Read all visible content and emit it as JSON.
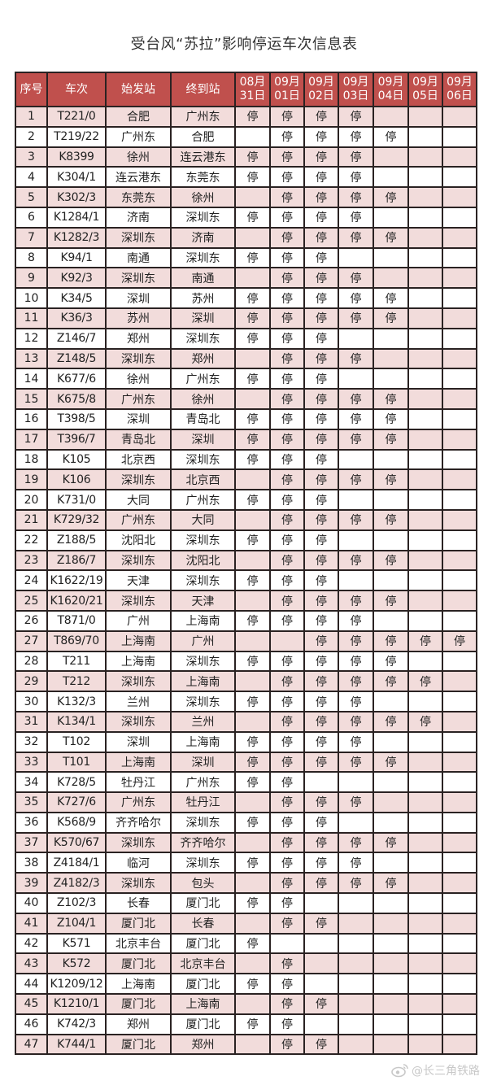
{
  "title": "受台风“苏拉”影响停运车次信息表",
  "columns": {
    "index": "序号",
    "train": "车次",
    "origin": "始发站",
    "destination": "终到站",
    "dates": [
      {
        "month": "08月",
        "day": "31日"
      },
      {
        "month": "09月",
        "day": "01日"
      },
      {
        "month": "09月",
        "day": "02日"
      },
      {
        "month": "09月",
        "day": "03日"
      },
      {
        "month": "09月",
        "day": "04日"
      },
      {
        "month": "09月",
        "day": "05日"
      },
      {
        "month": "09月",
        "day": "06日"
      }
    ]
  },
  "rows": [
    {
      "no": "1",
      "train": "T221/0",
      "from": "合肥",
      "to": "广州东",
      "days": [
        "停",
        "停",
        "停",
        "停",
        "",
        "",
        ""
      ]
    },
    {
      "no": "2",
      "train": "T219/22",
      "from": "广州东",
      "to": "合肥",
      "days": [
        "",
        "停",
        "停",
        "停",
        "停",
        "",
        ""
      ]
    },
    {
      "no": "3",
      "train": "K8399",
      "from": "徐州",
      "to": "连云港东",
      "days": [
        "停",
        "停",
        "停",
        "停",
        "",
        "",
        ""
      ]
    },
    {
      "no": "4",
      "train": "K304/1",
      "from": "连云港东",
      "to": "东莞东",
      "days": [
        "停",
        "停",
        "停",
        "停",
        "",
        "",
        ""
      ]
    },
    {
      "no": "5",
      "train": "K302/3",
      "from": "东莞东",
      "to": "徐州",
      "days": [
        "",
        "停",
        "停",
        "停",
        "停",
        "",
        ""
      ]
    },
    {
      "no": "6",
      "train": "K1284/1",
      "from": "济南",
      "to": "深圳东",
      "days": [
        "停",
        "停",
        "停",
        "停",
        "",
        "",
        ""
      ]
    },
    {
      "no": "7",
      "train": "K1282/3",
      "from": "深圳东",
      "to": "济南",
      "days": [
        "",
        "停",
        "停",
        "停",
        "停",
        "",
        ""
      ]
    },
    {
      "no": "8",
      "train": "K94/1",
      "from": "南通",
      "to": "深圳东",
      "days": [
        "停",
        "停",
        "停",
        "",
        "",
        "",
        ""
      ]
    },
    {
      "no": "9",
      "train": "K92/3",
      "from": "深圳东",
      "to": "南通",
      "days": [
        "",
        "停",
        "停",
        "停",
        "",
        "",
        ""
      ]
    },
    {
      "no": "10",
      "train": "K34/5",
      "from": "深圳",
      "to": "苏州",
      "days": [
        "停",
        "停",
        "停",
        "停",
        "停",
        "",
        ""
      ]
    },
    {
      "no": "11",
      "train": "K36/3",
      "from": "苏州",
      "to": "深圳",
      "days": [
        "停",
        "停",
        "停",
        "停",
        "停",
        "",
        ""
      ]
    },
    {
      "no": "12",
      "train": "Z146/7",
      "from": "郑州",
      "to": "深圳东",
      "days": [
        "停",
        "停",
        "停",
        "",
        "",
        "",
        ""
      ]
    },
    {
      "no": "13",
      "train": "Z148/5",
      "from": "深圳东",
      "to": "郑州",
      "days": [
        "",
        "停",
        "停",
        "停",
        "",
        "",
        ""
      ]
    },
    {
      "no": "14",
      "train": "K677/6",
      "from": "徐州",
      "to": "广州东",
      "days": [
        "停",
        "停",
        "停",
        "",
        "",
        "",
        ""
      ]
    },
    {
      "no": "15",
      "train": "K675/8",
      "from": "广州东",
      "to": "徐州",
      "days": [
        "",
        "停",
        "停",
        "停",
        "停",
        "",
        ""
      ]
    },
    {
      "no": "16",
      "train": "T398/5",
      "from": "深圳",
      "to": "青岛北",
      "days": [
        "停",
        "停",
        "停",
        "停",
        "停",
        "",
        ""
      ]
    },
    {
      "no": "17",
      "train": "T396/7",
      "from": "青岛北",
      "to": "深圳",
      "days": [
        "停",
        "停",
        "停",
        "停",
        "停",
        "",
        ""
      ]
    },
    {
      "no": "18",
      "train": "K105",
      "from": "北京西",
      "to": "深圳东",
      "days": [
        "停",
        "停",
        "停",
        "",
        "",
        "",
        ""
      ]
    },
    {
      "no": "19",
      "train": "K106",
      "from": "深圳东",
      "to": "北京西",
      "days": [
        "",
        "停",
        "停",
        "停",
        "停",
        "",
        ""
      ]
    },
    {
      "no": "20",
      "train": "K731/0",
      "from": "大同",
      "to": "广州东",
      "days": [
        "停",
        "停",
        "停",
        "",
        "",
        "",
        ""
      ]
    },
    {
      "no": "21",
      "train": "K729/32",
      "from": "广州东",
      "to": "大同",
      "days": [
        "",
        "停",
        "停",
        "停",
        "停",
        "",
        ""
      ]
    },
    {
      "no": "22",
      "train": "Z188/5",
      "from": "沈阳北",
      "to": "深圳东",
      "days": [
        "停",
        "停",
        "停",
        "",
        "",
        "",
        ""
      ]
    },
    {
      "no": "23",
      "train": "Z186/7",
      "from": "深圳东",
      "to": "沈阳北",
      "days": [
        "",
        "停",
        "停",
        "停",
        "停",
        "",
        ""
      ]
    },
    {
      "no": "24",
      "train": "K1622/19",
      "from": "天津",
      "to": "深圳东",
      "days": [
        "停",
        "停",
        "停",
        "",
        "",
        "",
        ""
      ]
    },
    {
      "no": "25",
      "train": "K1620/21",
      "from": "深圳东",
      "to": "天津",
      "days": [
        "",
        "停",
        "停",
        "停",
        "停",
        "",
        ""
      ]
    },
    {
      "no": "26",
      "train": "T871/0",
      "from": "广州",
      "to": "上海南",
      "days": [
        "停",
        "停",
        "停",
        "停",
        "",
        "",
        ""
      ]
    },
    {
      "no": "27",
      "train": "T869/70",
      "from": "上海南",
      "to": "广州",
      "days": [
        "",
        "",
        "停",
        "停",
        "停",
        "停",
        "停"
      ]
    },
    {
      "no": "28",
      "train": "T211",
      "from": "上海南",
      "to": "深圳东",
      "days": [
        "停",
        "停",
        "停",
        "停",
        "停",
        "",
        ""
      ]
    },
    {
      "no": "29",
      "train": "T212",
      "from": "深圳东",
      "to": "上海南",
      "days": [
        "",
        "停",
        "停",
        "停",
        "停",
        "停",
        ""
      ]
    },
    {
      "no": "30",
      "train": "K132/3",
      "from": "兰州",
      "to": "深圳东",
      "days": [
        "停",
        "停",
        "停",
        "停",
        "",
        "",
        ""
      ]
    },
    {
      "no": "31",
      "train": "K134/1",
      "from": "深圳东",
      "to": "兰州",
      "days": [
        "",
        "停",
        "停",
        "停",
        "停",
        "停",
        ""
      ]
    },
    {
      "no": "32",
      "train": "T102",
      "from": "深圳",
      "to": "上海南",
      "days": [
        "停",
        "停",
        "停",
        "停",
        "",
        "",
        ""
      ]
    },
    {
      "no": "33",
      "train": "T101",
      "from": "上海南",
      "to": "深圳",
      "days": [
        "停",
        "停",
        "停",
        "停",
        "停",
        "",
        ""
      ]
    },
    {
      "no": "34",
      "train": "K728/5",
      "from": "牡丹江",
      "to": "广州东",
      "days": [
        "停",
        "停",
        "",
        "",
        "",
        "",
        ""
      ]
    },
    {
      "no": "35",
      "train": "K727/6",
      "from": "广州东",
      "to": "牡丹江",
      "days": [
        "",
        "停",
        "停",
        "停",
        "",
        "",
        ""
      ]
    },
    {
      "no": "36",
      "train": "K568/9",
      "from": "齐齐哈尔",
      "to": "深圳东",
      "days": [
        "停",
        "停",
        "停",
        "",
        "",
        "",
        ""
      ]
    },
    {
      "no": "37",
      "train": "K570/67",
      "from": "深圳东",
      "to": "齐齐哈尔",
      "days": [
        "",
        "停",
        "停",
        "停",
        "停",
        "",
        ""
      ]
    },
    {
      "no": "38",
      "train": "Z4184/1",
      "from": "临河",
      "to": "深圳东",
      "days": [
        "停",
        "停",
        "停",
        "停",
        "",
        "",
        ""
      ]
    },
    {
      "no": "39",
      "train": "Z4182/3",
      "from": "深圳东",
      "to": "包头",
      "days": [
        "",
        "停",
        "停",
        "停",
        "停",
        "",
        ""
      ]
    },
    {
      "no": "40",
      "train": "Z102/3",
      "from": "长春",
      "to": "厦门北",
      "days": [
        "停",
        "停",
        "",
        "",
        "",
        "",
        ""
      ]
    },
    {
      "no": "41",
      "train": "Z104/1",
      "from": "厦门北",
      "to": "长春",
      "days": [
        "",
        "停",
        "停",
        "",
        "",
        "",
        ""
      ]
    },
    {
      "no": "42",
      "train": "K571",
      "from": "北京丰台",
      "to": "厦门北",
      "days": [
        "停",
        "",
        "",
        "",
        "",
        "",
        ""
      ]
    },
    {
      "no": "43",
      "train": "K572",
      "from": "厦门北",
      "to": "北京丰台",
      "days": [
        "",
        "停",
        "",
        "",
        "",
        "",
        ""
      ]
    },
    {
      "no": "44",
      "train": "K1209/12",
      "from": "上海南",
      "to": "厦门北",
      "days": [
        "停",
        "停",
        "",
        "",
        "",
        "",
        ""
      ]
    },
    {
      "no": "45",
      "train": "K1210/1",
      "from": "厦门北",
      "to": "上海南",
      "days": [
        "",
        "停",
        "停",
        "",
        "",
        "",
        ""
      ]
    },
    {
      "no": "46",
      "train": "K742/3",
      "from": "郑州",
      "to": "厦门北",
      "days": [
        "停",
        "停",
        "",
        "",
        "",
        "",
        ""
      ]
    },
    {
      "no": "47",
      "train": "K744/1",
      "from": "厦门北",
      "to": "郑州",
      "days": [
        "",
        "停",
        "停",
        "",
        "",
        "",
        ""
      ]
    }
  ],
  "watermark": {
    "text": "@长三角铁路",
    "icon": "weibo-logo-icon"
  },
  "colors": {
    "header": "#c0504d",
    "row_alt": "#f2dcdb",
    "border": "#2a2222"
  }
}
